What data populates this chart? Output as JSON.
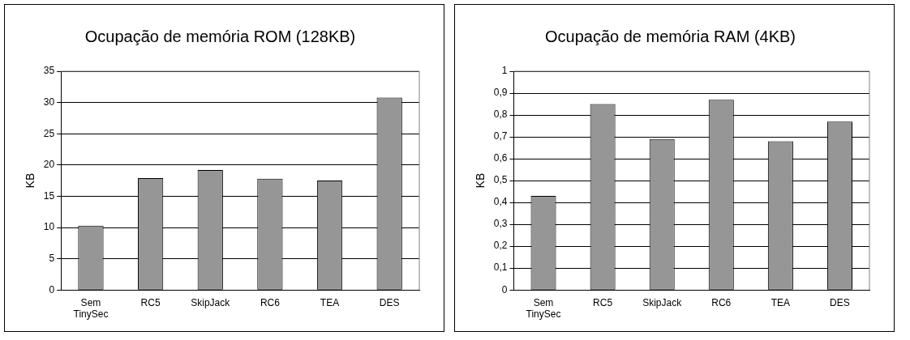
{
  "chart_data": [
    {
      "type": "bar",
      "title": "Ocupação de memória ROM (128KB)",
      "ylabel": "KB",
      "categories": [
        "Sem TinySec",
        "RC5",
        "SkipJack",
        "RC6",
        "TEA",
        "DES"
      ],
      "values": [
        10.3,
        17.9,
        19.2,
        17.8,
        17.5,
        30.8
      ],
      "color": "#969696",
      "ylim": [
        0,
        35
      ],
      "yticks": [
        0,
        5,
        10,
        15,
        20,
        25,
        30,
        35
      ],
      "grid": "y",
      "legend": false
    },
    {
      "type": "bar",
      "title": "Ocupação de memória RAM (4KB)",
      "ylabel": "KB",
      "categories": [
        "Sem TinySec",
        "RC5",
        "SkipJack",
        "RC6",
        "TEA",
        "DES"
      ],
      "values": [
        0.43,
        0.85,
        0.69,
        0.87,
        0.68,
        0.77
      ],
      "color": "#969696",
      "ylim": [
        0,
        1
      ],
      "yticks": [
        0,
        {
          "value": 0.1,
          "label": "0,1"
        },
        {
          "value": 0.2,
          "label": "0,2"
        },
        {
          "value": 0.3,
          "label": "0,3"
        },
        {
          "value": 0.4,
          "label": "0,4"
        },
        {
          "value": 0.5,
          "label": "0,5"
        },
        {
          "value": 0.6,
          "label": "0,6"
        },
        {
          "value": 0.7,
          "label": "0,7"
        },
        {
          "value": 0.8,
          "label": "0,8"
        },
        {
          "value": 0.9,
          "label": "0,9"
        },
        1
      ],
      "grid": "y",
      "legend": false
    }
  ]
}
